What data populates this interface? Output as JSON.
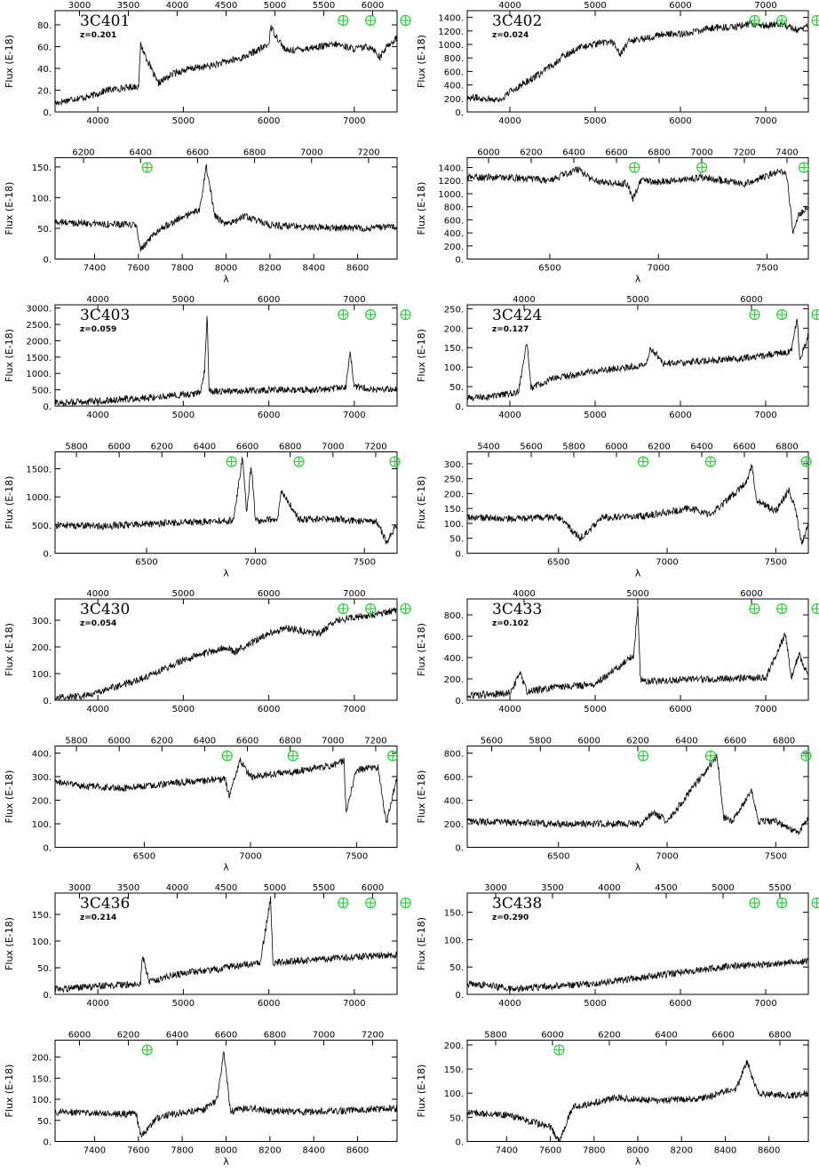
{
  "figure": {
    "ylabel": "Flux (E-18)",
    "xlabel": "λ",
    "telluric_color": "#2ecc40",
    "telluric_icon": "earth-circle-cross"
  },
  "chart_data": [
    {
      "type": "line",
      "title": "3C401",
      "subtitle": "z=0.201",
      "xlim": [
        3500,
        7500
      ],
      "ylim": [
        0,
        93
      ],
      "yticks": [
        0,
        20,
        40,
        60,
        80
      ],
      "xticks_bottom": [
        4000,
        5000,
        6000,
        7000
      ],
      "xticks_top": [
        3000,
        3500,
        4000,
        4500,
        5000,
        5500,
        6000
      ],
      "telluric_x": [
        6870,
        7190,
        7600
      ],
      "series": [
        {
          "x": [
            3500,
            3700,
            3900,
            4100,
            4300,
            4480,
            4500,
            4700,
            4900,
            5100,
            5300,
            5500,
            5700,
            5900,
            6000,
            6020,
            6200,
            6400,
            6600,
            6800,
            7000,
            7200,
            7300,
            7400,
            7500
          ],
          "y": [
            8,
            12,
            14,
            20,
            22,
            24,
            62,
            26,
            36,
            40,
            42,
            46,
            50,
            58,
            62,
            78,
            56,
            58,
            60,
            62,
            58,
            60,
            50,
            62,
            68
          ]
        }
      ]
    },
    {
      "type": "line",
      "title": "3C402",
      "subtitle": "z=0.024",
      "xlim": [
        3500,
        7500
      ],
      "ylim": [
        0,
        1500
      ],
      "yticks": [
        0,
        200,
        400,
        600,
        800,
        1000,
        1200,
        1400
      ],
      "xticks_bottom": [
        4000,
        5000,
        6000,
        7000
      ],
      "xticks_top": [
        4000,
        5000,
        6000,
        7000
      ],
      "telluric_x": [
        6870,
        7190,
        7600
      ],
      "series": [
        {
          "x": [
            3500,
            3700,
            3900,
            4000,
            4200,
            4400,
            4600,
            4800,
            5000,
            5200,
            5300,
            5400,
            5600,
            5800,
            6000,
            6200,
            6400,
            6600,
            6800,
            7000,
            7200,
            7400,
            7500
          ],
          "y": [
            220,
            200,
            180,
            300,
            450,
            600,
            800,
            950,
            1000,
            1050,
            850,
            1050,
            1100,
            1150,
            1150,
            1200,
            1250,
            1250,
            1300,
            1280,
            1300,
            1200,
            1300
          ]
        }
      ]
    },
    {
      "type": "line",
      "xlim": [
        7220,
        8780
      ],
      "ylim": [
        0,
        165
      ],
      "yticks": [
        0,
        50,
        100,
        150
      ],
      "xticks_bottom": [
        7400,
        7600,
        7800,
        8000,
        8200,
        8400,
        8600
      ],
      "xticks_top": [
        6200,
        6400,
        6600,
        6800,
        7000,
        7200
      ],
      "telluric_x": [
        7640
      ],
      "series": [
        {
          "x": [
            7220,
            7400,
            7590,
            7610,
            7700,
            7800,
            7880,
            7910,
            7950,
            8000,
            8080,
            8200,
            8400,
            8600,
            8780
          ],
          "y": [
            60,
            58,
            55,
            15,
            50,
            68,
            80,
            150,
            70,
            55,
            70,
            55,
            52,
            50,
            52
          ]
        }
      ]
    },
    {
      "type": "line",
      "xlim": [
        6120,
        7690
      ],
      "ylim": [
        0,
        1550
      ],
      "yticks": [
        0,
        200,
        400,
        600,
        800,
        1000,
        1200,
        1400
      ],
      "xticks_bottom": [
        6500,
        7000,
        7500
      ],
      "xticks_top": [
        6000,
        6200,
        6400,
        6600,
        6800,
        7000,
        7200,
        7400
      ],
      "telluric_x": [
        6890,
        7200,
        7670
      ],
      "series": [
        {
          "x": [
            6120,
            6300,
            6500,
            6630,
            6700,
            6860,
            6880,
            6920,
            7000,
            7200,
            7400,
            7560,
            7590,
            7620,
            7650,
            7690
          ],
          "y": [
            1250,
            1250,
            1200,
            1380,
            1200,
            1150,
            900,
            1200,
            1180,
            1250,
            1150,
            1350,
            1300,
            400,
            700,
            800
          ]
        }
      ]
    },
    {
      "type": "line",
      "title": "3C403",
      "subtitle": "z=0.059",
      "xlim": [
        3500,
        7500
      ],
      "ylim": [
        0,
        3100
      ],
      "yticks": [
        0,
        500,
        1000,
        1500,
        2000,
        2500,
        3000
      ],
      "xticks_bottom": [
        4000,
        5000,
        6000,
        7000
      ],
      "xticks_top": [
        4000,
        5000,
        6000,
        7000
      ],
      "telluric_x": [
        6870,
        7190,
        7600
      ],
      "series": [
        {
          "x": [
            3500,
            4000,
            4500,
            5000,
            5200,
            5250,
            5280,
            5300,
            5400,
            6000,
            6500,
            6900,
            6950,
            7000,
            7200,
            7500
          ],
          "y": [
            100,
            150,
            250,
            350,
            400,
            1100,
            2900,
            450,
            450,
            500,
            500,
            550,
            1700,
            600,
            500,
            500
          ]
        }
      ]
    },
    {
      "type": "line",
      "title": "3C424",
      "subtitle": "z=0.127",
      "xlim": [
        3500,
        7500
      ],
      "ylim": [
        0,
        260
      ],
      "yticks": [
        0,
        50,
        100,
        150,
        200,
        250
      ],
      "xticks_bottom": [
        4000,
        5000,
        6000,
        7000
      ],
      "xticks_top": [
        4000,
        5000,
        6000
      ],
      "telluric_x": [
        6870,
        7190,
        7600
      ],
      "series": [
        {
          "x": [
            3500,
            3800,
            4100,
            4200,
            4250,
            4500,
            5000,
            5600,
            5650,
            5800,
            6200,
            6600,
            7000,
            7300,
            7370,
            7400,
            7500
          ],
          "y": [
            20,
            25,
            35,
            170,
            45,
            70,
            90,
            105,
            150,
            110,
            115,
            120,
            130,
            140,
            230,
            120,
            180
          ]
        }
      ]
    },
    {
      "type": "line",
      "xlim": [
        6080,
        7650
      ],
      "ylim": [
        0,
        1800
      ],
      "yticks": [
        0,
        500,
        1000,
        1500
      ],
      "xticks_bottom": [
        6500,
        7000,
        7500
      ],
      "xticks_top": [
        5800,
        6000,
        6200,
        6400,
        6600,
        6800,
        7000,
        7200
      ],
      "telluric_x": [
        6890,
        7200,
        7640
      ],
      "series": [
        {
          "x": [
            6080,
            6300,
            6500,
            6700,
            6900,
            6940,
            6960,
            6980,
            7000,
            7100,
            7120,
            7200,
            7400,
            7560,
            7600,
            7650
          ],
          "y": [
            500,
            480,
            520,
            550,
            580,
            1700,
            700,
            1600,
            580,
            600,
            1100,
            600,
            600,
            550,
            200,
            500
          ]
        }
      ]
    },
    {
      "type": "line",
      "xlim": [
        6080,
        7650
      ],
      "ylim": [
        0,
        340
      ],
      "yticks": [
        0,
        50,
        100,
        150,
        200,
        250,
        300
      ],
      "xticks_bottom": [
        6500,
        7000,
        7500
      ],
      "xticks_top": [
        5400,
        5600,
        5800,
        6000,
        6200,
        6400,
        6600,
        6800
      ],
      "telluric_x": [
        6890,
        7200,
        7640
      ],
      "series": [
        {
          "x": [
            6080,
            6300,
            6500,
            6600,
            6700,
            6900,
            7100,
            7200,
            7370,
            7390,
            7410,
            7500,
            7560,
            7590,
            7620,
            7650
          ],
          "y": [
            120,
            115,
            120,
            50,
            120,
            125,
            150,
            130,
            240,
            300,
            180,
            140,
            210,
            150,
            30,
            100
          ]
        }
      ]
    },
    {
      "type": "line",
      "title": "3C430",
      "subtitle": "z=0.054",
      "xlim": [
        3500,
        7500
      ],
      "ylim": [
        0,
        380
      ],
      "yticks": [
        0,
        100,
        200,
        300
      ],
      "xticks_bottom": [
        4000,
        5000,
        6000,
        7000
      ],
      "xticks_top": [
        4000,
        5000,
        6000,
        7000
      ],
      "telluric_x": [
        6870,
        7190,
        7600
      ],
      "series": [
        {
          "x": [
            3500,
            3800,
            4000,
            4500,
            5000,
            5500,
            5600,
            6000,
            6200,
            6600,
            6800,
            7000,
            7200,
            7500
          ],
          "y": [
            10,
            15,
            30,
            80,
            150,
            200,
            180,
            250,
            270,
            250,
            300,
            310,
            320,
            340
          ]
        }
      ]
    },
    {
      "type": "line",
      "title": "3C433",
      "subtitle": "z=0.102",
      "xlim": [
        3500,
        7500
      ],
      "ylim": [
        0,
        950
      ],
      "yticks": [
        0,
        200,
        400,
        600,
        800
      ],
      "xticks_bottom": [
        4000,
        5000,
        6000,
        7000
      ],
      "xticks_top": [
        4000,
        5000,
        6000
      ],
      "telluric_x": [
        6870,
        7190,
        7600
      ],
      "series": [
        {
          "x": [
            3500,
            4000,
            4120,
            4200,
            4500,
            5000,
            5450,
            5500,
            5530,
            5600,
            6000,
            6500,
            7000,
            7230,
            7300,
            7390,
            7500
          ],
          "y": [
            40,
            70,
            250,
            80,
            120,
            150,
            420,
            880,
            200,
            180,
            190,
            200,
            210,
            620,
            220,
            430,
            220
          ]
        }
      ]
    },
    {
      "type": "line",
      "xlim": [
        6080,
        7690
      ],
      "ylim": [
        0,
        430
      ],
      "yticks": [
        0,
        100,
        200,
        300,
        400
      ],
      "xticks_bottom": [
        6500,
        7000,
        7500
      ],
      "xticks_top": [
        5800,
        6000,
        6200,
        6400,
        6600,
        6800,
        7000,
        7200
      ],
      "telluric_x": [
        6890,
        7200,
        7670
      ],
      "series": [
        {
          "x": [
            6080,
            6200,
            6400,
            6600,
            6880,
            6900,
            6950,
            7000,
            7200,
            7400,
            7440,
            7450,
            7500,
            7600,
            7640,
            7690
          ],
          "y": [
            280,
            260,
            250,
            270,
            290,
            220,
            370,
            300,
            320,
            350,
            370,
            150,
            330,
            340,
            100,
            300
          ]
        }
      ]
    },
    {
      "type": "line",
      "xlim": [
        6080,
        7650
      ],
      "ylim": [
        0,
        860
      ],
      "yticks": [
        0,
        200,
        400,
        600,
        800
      ],
      "xticks_bottom": [
        6500,
        7000,
        7500
      ],
      "xticks_top": [
        5600,
        5800,
        6000,
        6200,
        6400,
        6600,
        6800
      ],
      "telluric_x": [
        6890,
        7200,
        7640
      ],
      "series": [
        {
          "x": [
            6080,
            6300,
            6500,
            6880,
            6940,
            7000,
            7200,
            7230,
            7260,
            7300,
            7390,
            7420,
            7500,
            7600,
            7650
          ],
          "y": [
            220,
            210,
            200,
            200,
            300,
            220,
            700,
            780,
            250,
            230,
            480,
            220,
            220,
            120,
            250
          ]
        }
      ]
    },
    {
      "type": "line",
      "title": "3C436",
      "subtitle": "z=0.214",
      "xlim": [
        3500,
        7500
      ],
      "ylim": [
        0,
        190
      ],
      "yticks": [
        0,
        50,
        100,
        150
      ],
      "xticks_bottom": [
        4000,
        5000,
        6000,
        7000
      ],
      "xticks_top": [
        3000,
        3500,
        4000,
        4500,
        5000,
        5500,
        6000
      ],
      "telluric_x": [
        6870,
        7190,
        7600
      ],
      "series": [
        {
          "x": [
            3500,
            4000,
            4500,
            4520,
            4600,
            5000,
            5500,
            5900,
            6020,
            6050,
            6100,
            6500,
            7000,
            7500
          ],
          "y": [
            10,
            15,
            20,
            75,
            25,
            40,
            50,
            60,
            180,
            55,
            60,
            65,
            70,
            75
          ]
        }
      ]
    },
    {
      "type": "line",
      "title": "3C438",
      "subtitle": "z=0.290",
      "xlim": [
        3500,
        7500
      ],
      "ylim": [
        0,
        185
      ],
      "yticks": [
        0,
        50,
        100,
        150
      ],
      "xticks_bottom": [
        4000,
        5000,
        6000,
        7000
      ],
      "xticks_top": [
        3000,
        3500,
        4000,
        4500,
        5000,
        5500
      ],
      "telluric_x": [
        6870,
        7190,
        7600
      ],
      "series": [
        {
          "x": [
            3500,
            3800,
            4000,
            4500,
            5000,
            5500,
            6000,
            6500,
            7000,
            7500
          ],
          "y": [
            20,
            15,
            10,
            15,
            20,
            30,
            40,
            50,
            55,
            60
          ]
        }
      ]
    },
    {
      "type": "line",
      "xlim": [
        7220,
        8780
      ],
      "ylim": [
        0,
        240
      ],
      "yticks": [
        0,
        50,
        100,
        150,
        200
      ],
      "xticks_bottom": [
        7400,
        7600,
        7800,
        8000,
        8200,
        8400,
        8600
      ],
      "xticks_top": [
        6000,
        6200,
        6400,
        6600,
        6800,
        7000,
        7200
      ],
      "telluric_x": [
        7640
      ],
      "series": [
        {
          "x": [
            7220,
            7400,
            7590,
            7610,
            7700,
            7900,
            7960,
            7990,
            8020,
            8100,
            8200,
            8400,
            8600,
            8780
          ],
          "y": [
            70,
            68,
            65,
            15,
            60,
            75,
            100,
            215,
            70,
            80,
            72,
            70,
            75,
            78
          ]
        }
      ]
    },
    {
      "type": "line",
      "xlim": [
        7220,
        8780
      ],
      "ylim": [
        0,
        210
      ],
      "yticks": [
        0,
        50,
        100,
        150,
        200
      ],
      "xticks_bottom": [
        7400,
        7600,
        7800,
        8000,
        8200,
        8400,
        8600
      ],
      "xticks_top": [
        5800,
        6000,
        6200,
        6400,
        6600,
        6800
      ],
      "telluric_x": [
        7640
      ],
      "series": [
        {
          "x": [
            7220,
            7400,
            7600,
            7640,
            7700,
            7900,
            8100,
            8300,
            8450,
            8500,
            8550,
            8700,
            8780
          ],
          "y": [
            60,
            55,
            30,
            0,
            70,
            90,
            85,
            90,
            110,
            165,
            100,
            95,
            100
          ]
        }
      ]
    }
  ]
}
